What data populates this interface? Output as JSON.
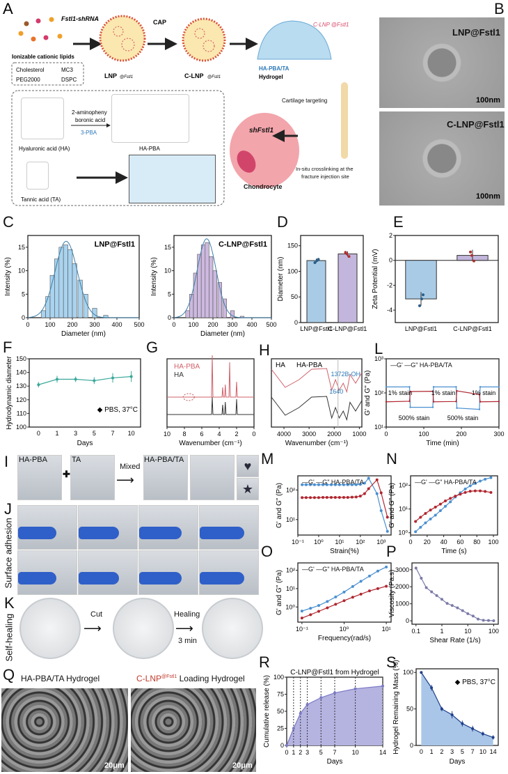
{
  "panel_letters": [
    "A",
    "B",
    "C",
    "D",
    "E",
    "F",
    "G",
    "H",
    "L",
    "I",
    "J",
    "K",
    "M",
    "N",
    "O",
    "P",
    "Q",
    "R",
    "S"
  ],
  "panelA": {
    "shrna": "Fstl1-shRNA",
    "cap": "CAP",
    "lipids": "Ionizable cationic lipids",
    "components": [
      "Cholesterol",
      "MC3",
      "PEG2000",
      "DSPC"
    ],
    "lnp": "LNP",
    "lnp_sup": "@Fstl1",
    "clnp": "C-LNP",
    "clnp_sup": "@Fstl1",
    "clnp_label": "C-LNP @Fstl1",
    "hydrogel_name": "HA-PBA/TA",
    "hydrogel": "Hydrogel",
    "reagent1": "2-aminopheny",
    "reagent2": "boronic acid",
    "reagent3": "3-PBA",
    "ha": "Hyaluronic acid (HA)",
    "hapba": "HA-PBA",
    "ta": "Tannic acid (TA)",
    "targeting": "Cartilage targeting",
    "shfstl1": "shFstl1",
    "chondrocyte": "Chondrocyte",
    "insitu1": "In-situ crosslinking at the",
    "insitu2": "fracture injection site",
    "colors": {
      "hydrogel": "#b9dcf0",
      "cell": "#f2a5ab",
      "accent": "#d94a6b",
      "blue_text": "#2b78b8"
    }
  },
  "panelB": {
    "labels": [
      "LNP@Fstl1",
      "C-LNP@Fstl1"
    ],
    "scale": [
      "100nm",
      "100nm"
    ]
  },
  "panelI": {
    "labels": [
      "HA-PBA",
      "TA",
      "HA-PBA/TA"
    ],
    "mixed": "Mixed",
    "shapes": [
      "heart",
      "star"
    ]
  },
  "panelJ": {
    "side": "Surface adhesion"
  },
  "panelK": {
    "side": "Self-healing",
    "cut": "Cut",
    "healing": "Healing",
    "time": "3 min"
  },
  "panelQ": {
    "left": "HA-PBA/TA Hydrogel",
    "right_pre": "C-LNP",
    "right_sup": "@Fstl1",
    "right_post": " Loading Hydrogel",
    "scale": [
      "20μm",
      "20μm"
    ]
  },
  "chart_data": [
    {
      "id": "C1",
      "type": "bar",
      "title": "LNP@Fstl1",
      "xlabel": "Diameter (nm)",
      "ylabel": "Intensity (%)",
      "xlim": [
        0,
        500
      ],
      "ylim": [
        0,
        17.5
      ],
      "xticks": [
        0,
        100,
        200,
        300,
        400,
        500
      ],
      "yticks": [
        0,
        5,
        10,
        15
      ],
      "color": "#a9d3ef",
      "x": [
        70,
        90,
        110,
        130,
        150,
        170,
        190,
        210,
        235,
        260,
        300,
        350
      ],
      "values": [
        1.5,
        4.5,
        9,
        12.5,
        15,
        15.5,
        14.5,
        11.5,
        8,
        5,
        2,
        0.5
      ],
      "fit": "gaussian"
    },
    {
      "id": "C2",
      "type": "bar",
      "title": "C-LNP@Fstl1",
      "xlabel": "Diameter (nm)",
      "ylabel": "Intensity (%)",
      "xlim": [
        0,
        500
      ],
      "ylim": [
        0,
        17.5
      ],
      "xticks": [
        0,
        100,
        200,
        300,
        400,
        500
      ],
      "yticks": [
        0,
        5,
        10,
        15
      ],
      "color": "#cdb9df",
      "x": [
        70,
        90,
        110,
        130,
        150,
        170,
        190,
        210,
        235,
        260,
        300,
        350
      ],
      "values": [
        1.5,
        5,
        9.5,
        13.5,
        15.5,
        16,
        13,
        10,
        7.5,
        4,
        1.5,
        0.3
      ],
      "fit": "gaussian"
    },
    {
      "id": "D",
      "type": "bar",
      "ylabel": "Diameter (nm)",
      "ylim": [
        0,
        170
      ],
      "yticks": [
        0,
        50,
        100,
        150
      ],
      "categories": [
        "LNP@Fstl1",
        "C-LNP@Fstl1"
      ],
      "values": [
        121,
        134
      ],
      "errors": [
        4,
        5
      ],
      "colors": [
        "#a9cbe6",
        "#c3b6dc"
      ]
    },
    {
      "id": "E",
      "type": "bar",
      "ylabel": "Zeta Potential (mV)",
      "ylim": [
        -5,
        2
      ],
      "yticks": [
        -4,
        -2,
        0,
        2
      ],
      "categories": [
        "LNP@Fstl1",
        "C-LNP@Fstl1"
      ],
      "values": [
        -3.1,
        0.4
      ],
      "errors": [
        0.55,
        0.45
      ],
      "colors": [
        "#a9cbe6",
        "#c3b6dc"
      ]
    },
    {
      "id": "F",
      "type": "line",
      "xlabel": "Days",
      "ylabel": "Hydrodynamic diameter",
      "ylim": [
        100,
        150
      ],
      "yticks": [
        100,
        110,
        120,
        130,
        140,
        150
      ],
      "categories": [
        "0",
        "1",
        "3",
        "5",
        "7",
        "10"
      ],
      "legend": "PBS, 37°C",
      "legend_position": "bottom-right",
      "series": [
        {
          "name": "PBS, 37°C",
          "values": [
            131,
            135,
            135,
            134,
            136,
            137
          ],
          "errors": [
            2,
            2.5,
            2,
            2.5,
            3.5,
            4
          ],
          "color": "#3aa89a"
        }
      ]
    },
    {
      "id": "G",
      "type": "line",
      "xlabel": "Wavenumber (cm⁻¹)",
      "xlim": [
        10,
        0
      ],
      "xticks": [
        10,
        8,
        6,
        4,
        2,
        0
      ],
      "series": [
        {
          "name": "HA-PBA",
          "color": "#d0616a"
        },
        {
          "name": "HA",
          "color": "#333333"
        }
      ]
    },
    {
      "id": "H",
      "type": "line",
      "xlabel": "Wavenumber (cm⁻¹)",
      "xlim": [
        4500,
        900
      ],
      "xticks": [
        4000,
        3000,
        2000,
        1000
      ],
      "annotations": [
        "1640",
        "1372B-OH"
      ],
      "series": [
        {
          "name": "HA",
          "color": "#333333"
        },
        {
          "name": "HA-PBA",
          "color": "#d0616a"
        }
      ]
    },
    {
      "id": "L",
      "type": "line",
      "xlabel": "Time (min)",
      "ylabel": "G' and G\" (Pa)",
      "xlim": [
        0,
        300
      ],
      "xticks": [
        0,
        100,
        200,
        300
      ],
      "yscale": "log",
      "ylim": [
        10,
        1000
      ],
      "legend": [
        "G'",
        "G\" HA-PBA/TA"
      ],
      "annotations": [
        "1% stain",
        "1% stain",
        "1% stain",
        "500% stain",
        "500% stain"
      ],
      "series": [
        {
          "name": "G'",
          "color": "#4a8fd0",
          "x": [
            0,
            62,
            64,
            124,
            126,
            186,
            188,
            248,
            250,
            300
          ],
          "values": [
            150,
            150,
            38,
            38,
            150,
            150,
            36,
            33,
            150,
            150
          ]
        },
        {
          "name": "G\"",
          "color": "#b0262f",
          "x": [
            0,
            62,
            64,
            124,
            126,
            186,
            188,
            248,
            250,
            300
          ],
          "values": [
            55,
            57,
            110,
            112,
            55,
            56,
            115,
            90,
            55,
            56
          ]
        }
      ]
    },
    {
      "id": "M",
      "type": "line",
      "xlabel": "Strain(%)",
      "ylabel": "G' and G\" (Pa)",
      "xscale": "log",
      "yscale": "log",
      "xlim": [
        0.1,
        3000
      ],
      "ylim": [
        3,
        300
      ],
      "legend": [
        "G'",
        "G\" HA-PBA/TA"
      ],
      "series": [
        {
          "name": "G'",
          "color": "#4a8fd0",
          "x": [
            0.16,
            0.25,
            0.4,
            0.63,
            1,
            1.6,
            2.5,
            4,
            6.3,
            10,
            16,
            25,
            40,
            63,
            100,
            160,
            250,
            630,
            1000,
            2000
          ],
          "values": [
            150,
            150,
            150,
            150,
            150,
            150,
            150,
            150,
            150,
            150,
            150,
            150,
            150,
            150,
            155,
            170,
            250,
            75,
            20,
            4
          ]
        },
        {
          "name": "G\"",
          "color": "#b0262f",
          "x": [
            0.16,
            0.25,
            0.4,
            0.63,
            1,
            1.6,
            2.5,
            4,
            6.3,
            10,
            16,
            25,
            40,
            63,
            100,
            160,
            250,
            630,
            1000,
            2000
          ],
          "values": [
            55,
            55,
            55,
            55,
            55,
            56,
            56,
            56,
            56,
            56,
            56,
            56,
            57,
            58,
            62,
            75,
            110,
            220,
            80,
            12
          ]
        }
      ]
    },
    {
      "id": "N",
      "type": "line",
      "xlabel": "Time (s)",
      "ylabel": "G' and G\" (Pa)",
      "yscale": "log",
      "xlim": [
        0,
        105
      ],
      "xticks": [
        0,
        20,
        40,
        60,
        80,
        100
      ],
      "ylim": [
        0.8,
        250
      ],
      "legend": [
        "G'",
        "G\" HA-PBA/TA"
      ],
      "series": [
        {
          "name": "G'",
          "color": "#4a8fd0",
          "x": [
            6,
            12,
            18,
            24,
            30,
            36,
            42,
            48,
            54,
            60,
            66,
            72,
            78,
            84,
            90,
            97
          ],
          "values": [
            1.1,
            1.7,
            2.6,
            3.8,
            5.5,
            8.5,
            13,
            20,
            32,
            48,
            70,
            95,
            120,
            150,
            180,
            210
          ]
        },
        {
          "name": "G\"",
          "color": "#b0262f",
          "x": [
            6,
            12,
            18,
            24,
            30,
            36,
            42,
            48,
            54,
            60,
            66,
            72,
            78,
            84,
            90,
            97
          ],
          "values": [
            3,
            4.5,
            6.5,
            9,
            12,
            16,
            22,
            28,
            35,
            42,
            50,
            56,
            58,
            58,
            55,
            50
          ]
        }
      ]
    },
    {
      "id": "O",
      "type": "line",
      "xlabel": "Frequency(rad/s)",
      "ylabel": "G' and G\" (Pa)",
      "xscale": "log",
      "yscale": "log",
      "xlim": [
        0.08,
        13
      ],
      "ylim": [
        0.15,
        250
      ],
      "legend": [
        "G'",
        "G\" HA-PBA/TA"
      ],
      "series": [
        {
          "name": "G'",
          "color": "#4a8fd0",
          "x": [
            0.1,
            0.16,
            0.25,
            0.4,
            0.63,
            1,
            1.6,
            2.5,
            4,
            6.3,
            10
          ],
          "values": [
            0.6,
            0.85,
            1.2,
            2,
            3.5,
            6.5,
            13,
            25,
            48,
            90,
            150
          ]
        },
        {
          "name": "G\"",
          "color": "#b0262f",
          "x": [
            0.1,
            0.16,
            0.25,
            0.4,
            0.63,
            1,
            1.6,
            2.5,
            4,
            6.3,
            10
          ],
          "values": [
            0.25,
            0.38,
            0.58,
            0.9,
            1.4,
            2.2,
            3.4,
            5,
            7.5,
            10,
            13.5
          ]
        }
      ]
    },
    {
      "id": "P",
      "type": "line",
      "xlabel": "Shear Rate (1/s)",
      "ylabel": "Viscosity (Pa.s)",
      "xscale": "log",
      "xlim": [
        0.07,
        150
      ],
      "xticks": [
        0.1,
        1,
        10,
        100
      ],
      "xticklabels": [
        "0.1",
        "1",
        "10",
        "100"
      ],
      "ylim": [
        -200,
        3400
      ],
      "yticks": [
        0,
        1000,
        2000,
        3000
      ],
      "series": [
        {
          "color": "#7a7aa8",
          "x": [
            0.1,
            0.16,
            0.25,
            0.4,
            0.63,
            1,
            1.6,
            2.5,
            4,
            6.3,
            10,
            16,
            25,
            40,
            63,
            100
          ],
          "values": [
            3100,
            2500,
            1950,
            1700,
            1480,
            1260,
            1020,
            900,
            760,
            600,
            420,
            280,
            100,
            30,
            20,
            5
          ]
        }
      ]
    },
    {
      "id": "R",
      "type": "area",
      "title": "C-LNP@Fstl1 from Hydrogel",
      "xlabel": "Days",
      "ylabel": "Cumulative release (%)",
      "xlim": [
        0,
        14
      ],
      "xticks": [
        0,
        1,
        2,
        3,
        5,
        7,
        10,
        14
      ],
      "ylim": [
        0,
        100
      ],
      "yticks": [
        0,
        25,
        50,
        75,
        100
      ],
      "series": [
        {
          "x": [
            0,
            1,
            2,
            3,
            5,
            7,
            10,
            14
          ],
          "values": [
            0,
            25,
            47,
            60,
            70,
            77,
            83,
            87
          ],
          "errors": [
            0,
            3,
            3,
            3,
            4,
            4,
            1,
            1
          ],
          "color": "#7b7ac4",
          "fill": "#b5b3e0"
        }
      ]
    },
    {
      "id": "S",
      "type": "area",
      "xlabel": "Days",
      "ylabel": "Hydrogel Remaining Mass (%)",
      "categories": [
        "0",
        "1",
        "2",
        "3",
        "5",
        "7",
        "10",
        "14"
      ],
      "ylim": [
        0,
        105
      ],
      "yticks": [
        0,
        50,
        100
      ],
      "legend": "PBS, 37°C",
      "legend_position": "top-right",
      "series": [
        {
          "name": "PBS, 37°C",
          "values": [
            100,
            79,
            50,
            42,
            30,
            23,
            16,
            11
          ],
          "errors": [
            0,
            4,
            3,
            5,
            4,
            4,
            3,
            3
          ],
          "color": "#1f3f8a",
          "fill": "#a9c6e8"
        }
      ]
    }
  ]
}
